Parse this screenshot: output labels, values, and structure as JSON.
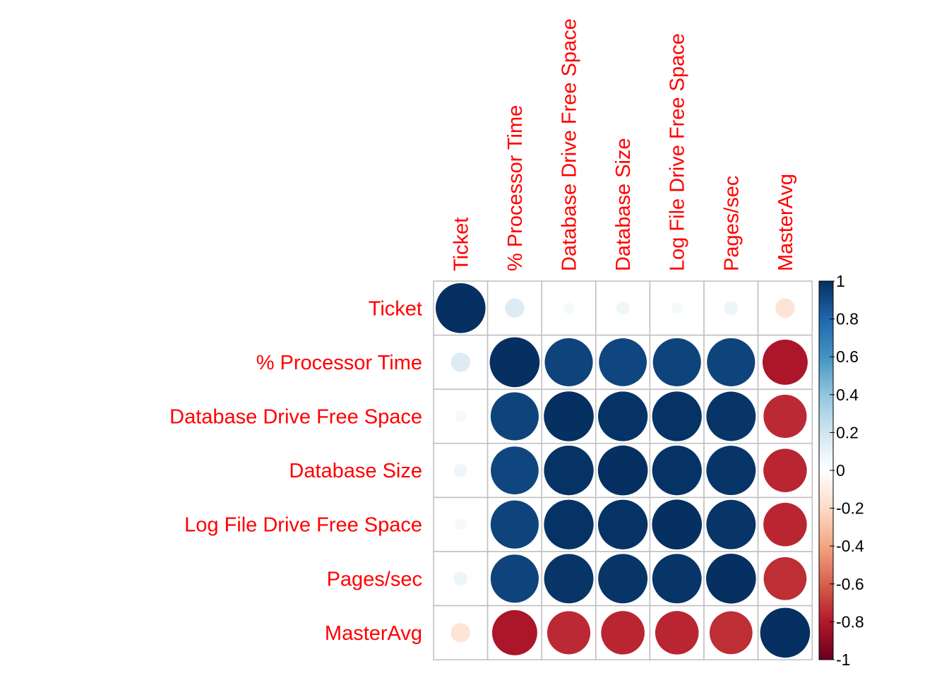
{
  "chart_data": {
    "type": "heatmap",
    "subtype": "correlation-circles",
    "variables": [
      "Ticket",
      "% Processor Time",
      "Database Drive Free Space",
      "Database Size",
      "Log File Drive Free Space",
      "Pages/sec",
      "MasterAvg"
    ],
    "matrix": [
      [
        1.0,
        0.15,
        0.05,
        0.07,
        0.05,
        0.08,
        -0.15
      ],
      [
        0.15,
        1.0,
        0.93,
        0.92,
        0.93,
        0.93,
        -0.82
      ],
      [
        0.05,
        0.93,
        1.0,
        0.99,
        0.99,
        0.98,
        -0.75
      ],
      [
        0.07,
        0.92,
        0.99,
        1.0,
        0.99,
        0.98,
        -0.76
      ],
      [
        0.05,
        0.93,
        0.99,
        0.99,
        1.0,
        0.98,
        -0.76
      ],
      [
        0.08,
        0.93,
        0.98,
        0.98,
        0.98,
        1.0,
        -0.74
      ],
      [
        -0.15,
        -0.82,
        -0.75,
        -0.76,
        -0.76,
        -0.74,
        1.0
      ]
    ],
    "color_scale": {
      "range": [
        -1,
        1
      ],
      "ticks": [
        "1",
        "0.8",
        "0.6",
        "0.4",
        "0.2",
        "0",
        "-0.2",
        "-0.4",
        "-0.6",
        "-0.8",
        "-1"
      ],
      "stops": [
        "#67001F",
        "#B2182B",
        "#D6604D",
        "#F4A582",
        "#FDDBC7",
        "#FFFFFF",
        "#D1E5F0",
        "#92C5DE",
        "#4393C3",
        "#2166AC",
        "#053061"
      ]
    },
    "label_color": "#FF0000",
    "grid_color": "#BEBEBE"
  }
}
